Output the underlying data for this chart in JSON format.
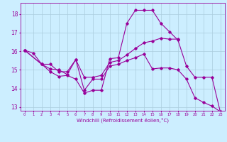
{
  "xlabel": "Windchill (Refroidissement éolien,°C)",
  "background_color": "#cceeff",
  "grid_color": "#aaccdd",
  "line_color": "#990099",
  "xlim": [
    -0.5,
    23.5
  ],
  "ylim": [
    12.8,
    18.6
  ],
  "yticks": [
    13,
    14,
    15,
    16,
    17,
    18
  ],
  "xticks": [
    0,
    1,
    2,
    3,
    4,
    5,
    6,
    7,
    8,
    9,
    10,
    11,
    12,
    13,
    14,
    15,
    16,
    17,
    18,
    19,
    20,
    21,
    22,
    23
  ],
  "line1_x": [
    0,
    1,
    2,
    3,
    4,
    5,
    6,
    7,
    8,
    9,
    10,
    11,
    12,
    13,
    14,
    15,
    16,
    17,
    18,
    19,
    20,
    21,
    22,
    23
  ],
  "line1_y": [
    16.05,
    15.9,
    15.3,
    14.9,
    14.65,
    14.7,
    14.5,
    13.75,
    13.9,
    13.9,
    15.6,
    15.65,
    17.5,
    18.2,
    18.2,
    18.2,
    17.5,
    17.05,
    16.6,
    15.2,
    14.6,
    14.6,
    14.6,
    12.7
  ],
  "line2_x": [
    0,
    2,
    3,
    4,
    5,
    6,
    7,
    8,
    9,
    10,
    11,
    12,
    13,
    14,
    15,
    16,
    17,
    18
  ],
  "line2_y": [
    16.05,
    15.3,
    15.3,
    14.9,
    14.9,
    15.55,
    14.6,
    14.6,
    14.7,
    15.4,
    15.5,
    15.8,
    16.15,
    16.45,
    16.55,
    16.7,
    16.65,
    16.65
  ],
  "line3_x": [
    0,
    2,
    3,
    4,
    5,
    6,
    7,
    8,
    9,
    10,
    11,
    12,
    13,
    14,
    15,
    16,
    17,
    18,
    19,
    20,
    21,
    22,
    23
  ],
  "line3_y": [
    16.05,
    15.3,
    15.05,
    15.0,
    14.75,
    15.55,
    13.9,
    14.5,
    14.5,
    15.2,
    15.3,
    15.5,
    15.65,
    15.85,
    15.05,
    15.1,
    15.1,
    15.0,
    14.5,
    13.5,
    13.25,
    13.05,
    12.75
  ]
}
